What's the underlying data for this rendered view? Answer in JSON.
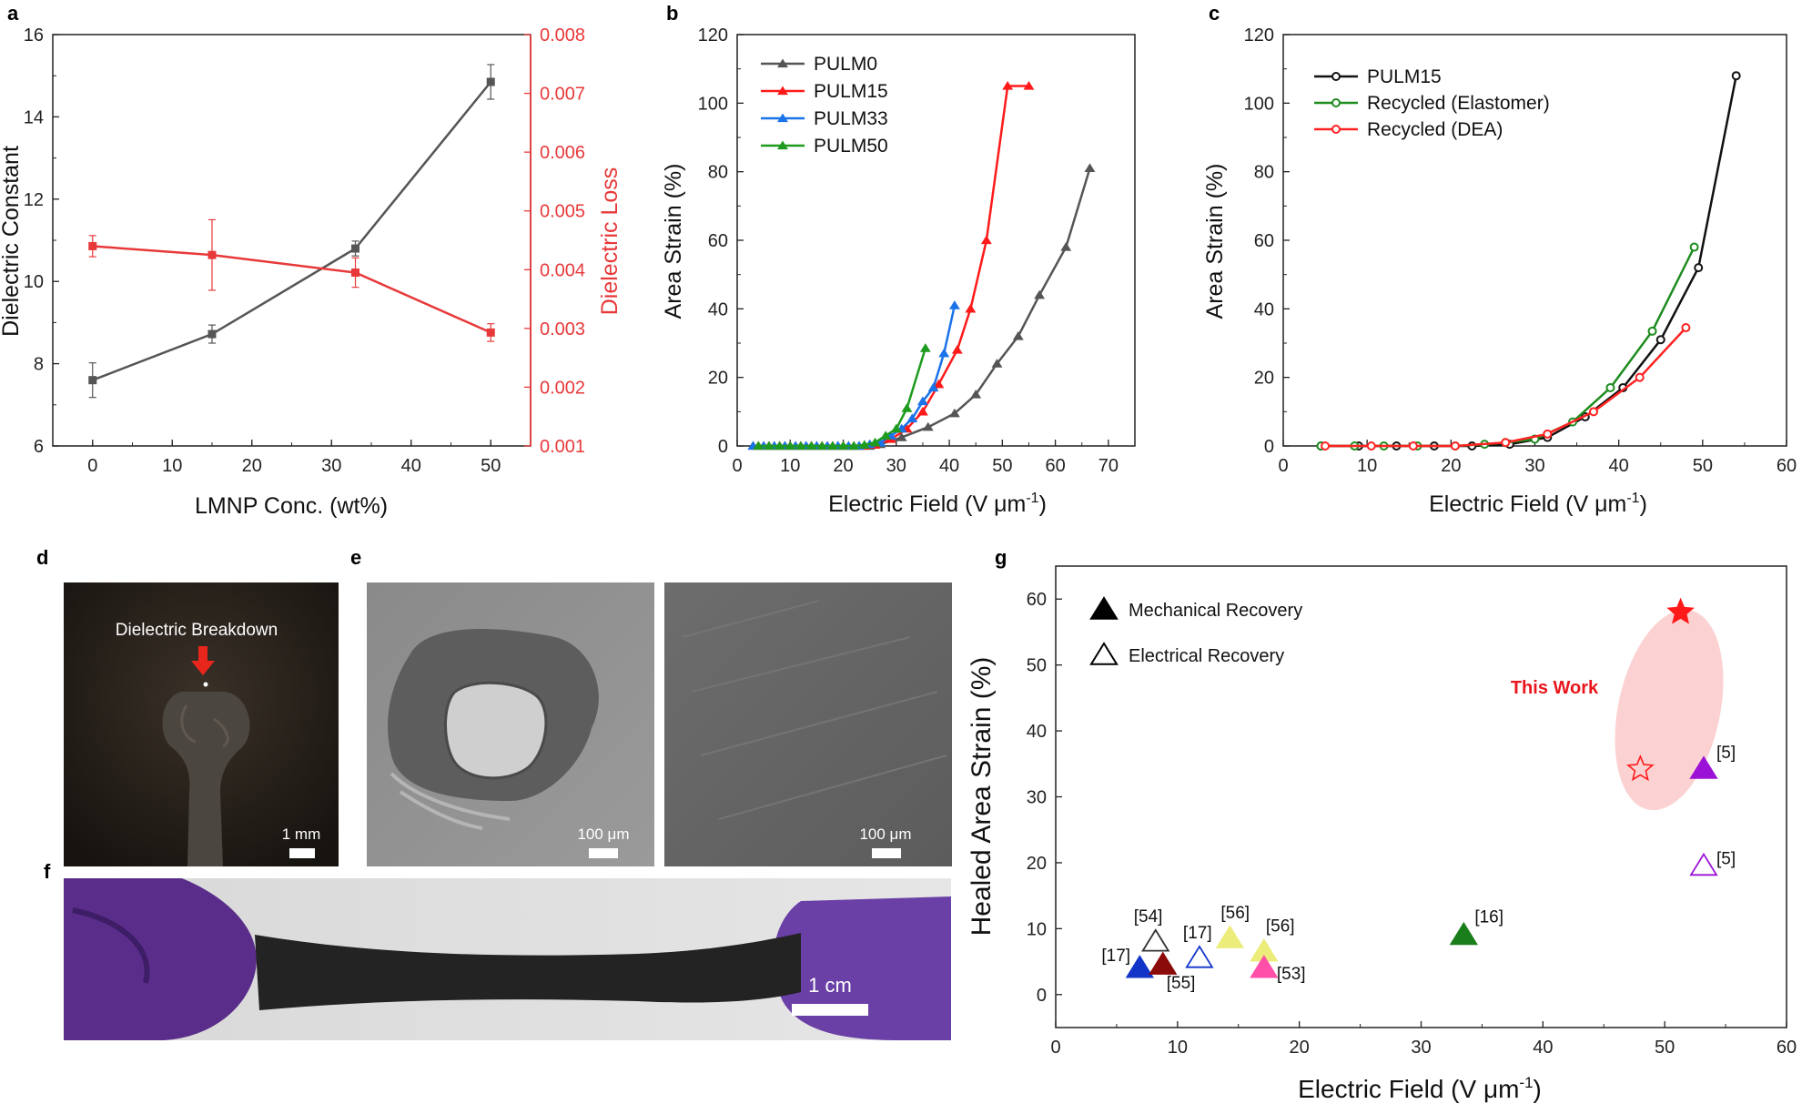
{
  "panel_labels": {
    "a": "a",
    "b": "b",
    "c": "c",
    "d": "d",
    "e": "e",
    "f": "f",
    "g": "g"
  },
  "chart_data": [
    {
      "id": "a",
      "type": "line",
      "title": "",
      "xlabel": "LMNP Conc. (wt%)",
      "ylabel": "Dielectric Constant",
      "ylabel_right": "Dielectric Loss",
      "xlim": [
        -5,
        55
      ],
      "ylim": [
        6,
        16
      ],
      "ylim_right": [
        0.001,
        0.008
      ],
      "x_ticks": [
        "0",
        "10",
        "20",
        "30",
        "40",
        "50"
      ],
      "y_ticks": [
        "6",
        "8",
        "10",
        "12",
        "14",
        "16"
      ],
      "y_ticks_right": [
        "0.001",
        "0.002",
        "0.003",
        "0.004",
        "0.005",
        "0.006",
        "0.007",
        "0.008"
      ],
      "series": [
        {
          "name": "Dielectric Constant",
          "axis": "left",
          "color": "#555555",
          "x": [
            0,
            15,
            33,
            50
          ],
          "y": [
            7.6,
            8.72,
            10.8,
            14.85
          ],
          "err": [
            0.42,
            0.22,
            0.18,
            0.42
          ]
        },
        {
          "name": "Dielectric Loss",
          "axis": "right",
          "color": "#e8393a",
          "x": [
            0,
            15,
            33,
            50
          ],
          "y": [
            0.0044,
            0.00425,
            0.00395,
            0.00293
          ],
          "err": [
            0.00018,
            0.0006,
            0.00025,
            0.00015
          ]
        }
      ]
    },
    {
      "id": "b",
      "type": "line",
      "title": "",
      "xlabel": "Electric Field (V μm",
      "xlabel_sup": "-1",
      "xlabel_close": ")",
      "ylabel": "Area Strain (%)",
      "xlim": [
        0,
        75
      ],
      "ylim": [
        0,
        120
      ],
      "x_ticks": [
        "0",
        "10",
        "20",
        "30",
        "40",
        "50",
        "60",
        "70"
      ],
      "y_ticks": [
        "0",
        "20",
        "40",
        "60",
        "80",
        "100",
        "120"
      ],
      "legend_position": "top-left",
      "series": [
        {
          "name": "PULM0",
          "color": "#555555",
          "marker": "triangle",
          "x": [
            3,
            5,
            7,
            9,
            11,
            13,
            15,
            17,
            19,
            21,
            23,
            25,
            27,
            31,
            36,
            41,
            45,
            49,
            53,
            57,
            62,
            66.5
          ],
          "y": [
            0,
            0,
            0,
            0,
            0,
            0,
            0,
            0,
            0,
            0,
            0,
            0,
            0.5,
            2.5,
            5.5,
            9.5,
            15,
            24,
            32,
            44,
            58,
            81
          ]
        },
        {
          "name": "PULM15",
          "color": "#ff1a1a",
          "marker": "triangle",
          "x": [
            4,
            6,
            8,
            10,
            12,
            14,
            16,
            18,
            20,
            22,
            24,
            26,
            29,
            32,
            35,
            38,
            41.5,
            44,
            47,
            51,
            55
          ],
          "y": [
            0,
            0,
            0,
            0,
            0,
            0,
            0,
            0,
            0,
            0,
            0,
            0.3,
            2,
            5,
            10,
            18,
            28,
            40,
            60,
            105,
            105
          ]
        },
        {
          "name": "PULM33",
          "color": "#1a73e8",
          "marker": "triangle",
          "x": [
            3,
            5,
            7,
            9,
            11,
            13,
            15,
            17,
            19,
            21,
            23,
            25,
            27,
            29,
            31,
            33,
            35,
            37,
            39,
            41
          ],
          "y": [
            0,
            0,
            0,
            0,
            0,
            0,
            0,
            0,
            0,
            0,
            0,
            0.5,
            1,
            3,
            5,
            8,
            13,
            17,
            27,
            41
          ]
        },
        {
          "name": "PULM50",
          "color": "#1e9b1e",
          "marker": "triangle",
          "x": [
            4,
            6,
            8,
            10,
            12,
            14,
            16,
            18,
            20,
            22,
            24,
            26,
            28,
            30,
            32,
            35.5
          ],
          "y": [
            0,
            0,
            0,
            0,
            0,
            0,
            0,
            0,
            0,
            0,
            0.3,
            1,
            3,
            5,
            11,
            28.5
          ]
        }
      ]
    },
    {
      "id": "c",
      "type": "line",
      "title": "",
      "xlabel": "Electric Field (V μm",
      "xlabel_sup": "-1",
      "xlabel_close": ")",
      "ylabel": "Area Strain (%)",
      "xlim": [
        0,
        60
      ],
      "ylim": [
        0,
        120
      ],
      "x_ticks": [
        "0",
        "10",
        "20",
        "30",
        "40",
        "50",
        "60"
      ],
      "y_ticks": [
        "0",
        "20",
        "40",
        "60",
        "80",
        "100",
        "120"
      ],
      "legend_position": "top-left",
      "series": [
        {
          "name": "PULM15",
          "color": "#111111",
          "marker": "circle",
          "x": [
            4.5,
            9,
            13.5,
            18,
            22.5,
            27,
            31.5,
            36,
            40.5,
            45,
            49.5,
            54
          ],
          "y": [
            0,
            0,
            0,
            0,
            0,
            0.5,
            2.5,
            8.5,
            17,
            31,
            52,
            108
          ]
        },
        {
          "name": "Recycled (Elastomer)",
          "color": "#1e8c1e",
          "marker": "circle",
          "x": [
            4.5,
            8.5,
            12,
            16,
            20.5,
            24,
            26.5,
            30,
            34.5,
            39,
            44,
            49
          ],
          "y": [
            0,
            0,
            0,
            0,
            0,
            0.5,
            1,
            2,
            7,
            17,
            33.5,
            58
          ]
        },
        {
          "name": "Recycled (DEA)",
          "color": "#ff2222",
          "marker": "circle",
          "x": [
            5,
            10.5,
            15.5,
            20.5,
            26.5,
            31.5,
            37,
            42.5,
            48
          ],
          "y": [
            0,
            0,
            0,
            0,
            1,
            3.5,
            10,
            20,
            34.5
          ]
        }
      ]
    },
    {
      "id": "g",
      "type": "scatter",
      "title": "",
      "xlabel": "Electric Field (V μm",
      "xlabel_sup": "-1",
      "xlabel_close": ")",
      "ylabel": "Healed Area Strain (%)",
      "xlim": [
        0,
        60
      ],
      "ylim": [
        -5,
        65
      ],
      "x_ticks": [
        "0",
        "10",
        "20",
        "30",
        "40",
        "50",
        "60"
      ],
      "y_ticks": [
        "0",
        "10",
        "20",
        "30",
        "40",
        "50",
        "60"
      ],
      "legend_position": "top-left",
      "legend": [
        {
          "label": "Mechanical Recovery",
          "filled": true
        },
        {
          "label": "Electrical Recovery",
          "filled": false
        }
      ],
      "annotation": "This Work",
      "points": [
        {
          "x": 51.3,
          "y": 58,
          "shape": "star",
          "filled": true,
          "color": "#ff1a1a",
          "label": ""
        },
        {
          "x": 48,
          "y": 34.2,
          "shape": "star",
          "filled": false,
          "color": "#ff1a1a",
          "label": ""
        },
        {
          "x": 53.2,
          "y": 34.2,
          "shape": "triangle",
          "filled": true,
          "color": "#9b12d6",
          "label": "[5]"
        },
        {
          "x": 53.2,
          "y": 19.5,
          "shape": "triangle",
          "filled": false,
          "color": "#9b12d6",
          "label": "[5]"
        },
        {
          "x": 33.5,
          "y": 9,
          "shape": "triangle",
          "filled": true,
          "color": "#1a7f1a",
          "label": "[16]"
        },
        {
          "x": 6.9,
          "y": 4,
          "shape": "triangle",
          "filled": true,
          "color": "#1235c8",
          "label": "[17]"
        },
        {
          "x": 11.8,
          "y": 5.5,
          "shape": "triangle",
          "filled": false,
          "color": "#1235c8",
          "label": "[17]"
        },
        {
          "x": 8.8,
          "y": 4.5,
          "shape": "triangle",
          "filled": true,
          "color": "#8b0a0a",
          "label": "[55]"
        },
        {
          "x": 8.2,
          "y": 8,
          "shape": "triangle",
          "filled": false,
          "color": "#333333",
          "label": "[54]"
        },
        {
          "x": 14.3,
          "y": 8.5,
          "shape": "triangle",
          "filled": true,
          "color": "#ecec7a",
          "label": "[56]"
        },
        {
          "x": 17.1,
          "y": 6.5,
          "shape": "triangle",
          "filled": true,
          "color": "#ecec7a",
          "label": "[56]"
        },
        {
          "x": 17.1,
          "y": 4,
          "shape": "triangle",
          "filled": true,
          "color": "#ff4fa8",
          "label": "[53]"
        }
      ]
    }
  ],
  "photos": {
    "d": {
      "annotation": "Dielectric Breakdown",
      "scale_bar": "1 mm"
    },
    "e_left": {
      "scale_bar": "100 μm"
    },
    "e_right": {
      "scale_bar": "100 μm"
    },
    "f": {
      "scale_bar": "1 cm"
    }
  }
}
